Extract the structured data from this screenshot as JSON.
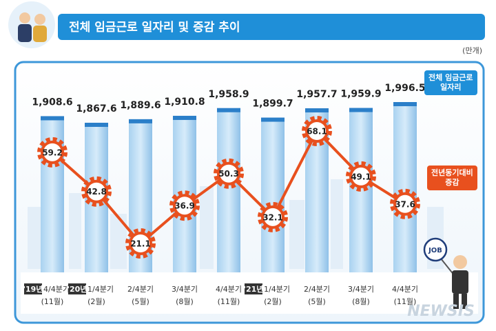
{
  "header": {
    "title": "전체 임금근로 일자리 및 증감 추이",
    "unit": "(만개)"
  },
  "chart_data": {
    "type": "bar-line",
    "categories": [
      "4/4분기",
      "1/4분기",
      "2/4분기",
      "3/4분기",
      "4/4분기",
      "1/4분기",
      "2/4분기",
      "3/4분기",
      "4/4분기"
    ],
    "months": [
      "(11월)",
      "(2월)",
      "(5월)",
      "(8월)",
      "(11월)",
      "(2월)",
      "(5월)",
      "(8월)",
      "(11월)"
    ],
    "year_tags": [
      "'19년",
      "'20년",
      null,
      null,
      null,
      "'21년",
      null,
      null,
      null
    ],
    "series": [
      {
        "name": "전체 임금근로\n일자리",
        "color": "#8fc1e8",
        "type": "bar",
        "values": [
          1908.6,
          1867.6,
          1889.6,
          1910.8,
          1958.9,
          1899.7,
          1957.7,
          1959.9,
          1996.5
        ],
        "value_labels": [
          "1,908.6",
          "1,867.6",
          "1,889.6",
          "1,910.8",
          "1,958.9",
          "1,899.7",
          "1,957.7",
          "1,959.9",
          "1,996.5"
        ]
      },
      {
        "name": "전년동기대비\n증감",
        "color": "#e8501e",
        "type": "line",
        "values": [
          59.2,
          42.8,
          21.1,
          36.9,
          50.3,
          32.1,
          68.1,
          49.1,
          37.6
        ]
      }
    ]
  },
  "illustration": {
    "sign": "JOB"
  },
  "watermark": "NEWSIS"
}
